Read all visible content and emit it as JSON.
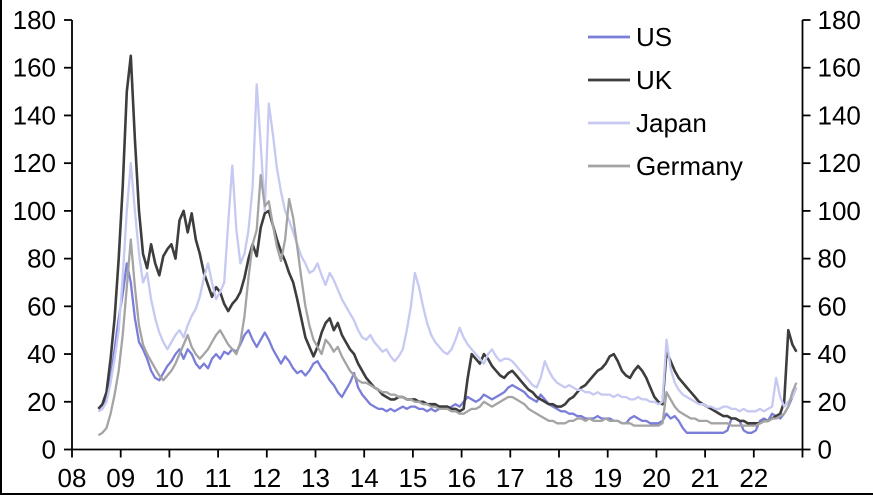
{
  "chart_data": {
    "type": "line",
    "title": "",
    "xlabel": "",
    "ylabel": "",
    "grid": false,
    "x_start": 2008.5417,
    "x_step": 0.0833333,
    "x_axis": {
      "tick_years": [
        2008,
        2009,
        2010,
        2011,
        2012,
        2013,
        2014,
        2015,
        2016,
        2017,
        2018,
        2019,
        2020,
        2021,
        2022,
        2023
      ],
      "tick_labels": [
        "08",
        "09",
        "10",
        "11",
        "12",
        "13",
        "14",
        "15",
        "16",
        "17",
        "18",
        "19",
        "20",
        "21",
        "22",
        ""
      ]
    },
    "y_axis": {
      "min": 0,
      "max": 180,
      "step": 20,
      "tick_labels": [
        "0",
        "20",
        "40",
        "60",
        "80",
        "100",
        "120",
        "140",
        "160",
        "180"
      ],
      "mirrored_right": true
    },
    "legend": {
      "position": "top-right",
      "entries": [
        "US",
        "UK",
        "Japan",
        "Germany"
      ]
    },
    "series": [
      {
        "name": "US",
        "color": "#7a7ed9",
        "width": 2.3,
        "values": [
          16,
          17,
          21,
          30,
          42,
          55,
          65,
          78,
          70,
          55,
          45,
          42,
          38,
          33,
          30,
          29,
          32,
          35,
          37,
          40,
          42,
          38,
          42,
          40,
          36,
          34,
          36,
          34,
          38,
          40,
          38,
          41,
          40,
          42,
          41,
          44,
          48,
          50,
          46,
          43,
          46,
          49,
          46,
          42,
          39,
          36,
          39,
          37,
          34,
          32,
          33,
          31,
          33,
          36,
          37,
          34,
          32,
          29,
          27,
          24,
          22,
          25,
          28,
          32,
          26,
          23,
          21,
          19,
          18,
          17,
          17,
          16,
          17,
          16,
          17,
          18,
          17,
          18,
          18,
          17,
          17,
          16,
          17,
          16,
          17,
          18,
          17,
          18,
          19,
          18,
          20,
          22,
          21,
          20,
          21,
          23,
          22,
          21,
          22,
          23,
          24,
          26,
          27,
          26,
          25,
          24,
          22,
          21,
          20,
          23,
          21,
          19,
          18,
          17,
          16,
          16,
          15,
          15,
          14,
          14,
          13,
          13,
          13,
          14,
          13,
          13,
          13,
          12,
          12,
          11,
          11,
          13,
          14,
          13,
          12,
          12,
          11,
          11,
          11,
          12,
          15,
          13,
          14,
          12,
          9,
          7,
          7,
          7,
          7,
          7,
          7,
          7,
          7,
          7,
          7,
          8,
          13,
          13,
          12,
          8,
          7,
          7,
          8,
          12,
          13,
          12,
          15,
          14,
          13,
          15,
          18,
          22,
          26
        ]
      },
      {
        "name": "UK",
        "color": "#3d3d3d",
        "width": 2.6,
        "values": [
          17,
          19,
          24,
          38,
          55,
          80,
          110,
          150,
          165,
          130,
          100,
          82,
          76,
          86,
          78,
          73,
          81,
          84,
          86,
          80,
          96,
          100,
          91,
          99,
          88,
          82,
          74,
          69,
          64,
          68,
          66,
          61,
          58,
          61,
          63,
          66,
          72,
          80,
          86,
          81,
          93,
          99,
          100,
          94,
          88,
          83,
          79,
          74,
          70,
          63,
          55,
          47,
          43,
          39,
          43,
          49,
          53,
          55,
          50,
          53,
          48,
          45,
          42,
          40,
          36,
          33,
          30,
          28,
          26,
          25,
          23,
          22,
          21,
          21,
          22,
          22,
          21,
          21,
          21,
          20,
          20,
          19,
          19,
          19,
          18,
          18,
          18,
          17,
          17,
          16,
          17,
          30,
          40,
          38,
          36,
          40,
          38,
          35,
          33,
          31,
          30,
          32,
          33,
          31,
          29,
          27,
          25,
          24,
          22,
          21,
          20,
          19,
          19,
          18,
          18,
          19,
          21,
          22,
          24,
          26,
          27,
          29,
          31,
          33,
          34,
          36,
          39,
          40,
          37,
          33,
          31,
          30,
          33,
          35,
          33,
          30,
          26,
          22,
          20,
          19,
          41,
          37,
          33,
          30,
          28,
          26,
          24,
          22,
          20,
          19,
          18,
          17,
          16,
          15,
          14,
          14,
          13,
          13,
          12,
          12,
          11,
          11,
          11,
          11,
          12,
          12,
          13,
          14,
          15,
          20,
          50,
          44,
          41
        ]
      },
      {
        "name": "Japan",
        "color": "#c6c9f1",
        "width": 2.3,
        "values": [
          16,
          17,
          20,
          28,
          38,
          50,
          72,
          100,
          120,
          100,
          82,
          70,
          74,
          63,
          55,
          49,
          45,
          42,
          45,
          48,
          50,
          47,
          52,
          56,
          59,
          64,
          72,
          78,
          70,
          63,
          66,
          70,
          95,
          119,
          92,
          78,
          82,
          92,
          110,
          153,
          128,
          100,
          145,
          132,
          118,
          108,
          100,
          96,
          91,
          86,
          81,
          78,
          74,
          75,
          78,
          73,
          69,
          74,
          71,
          67,
          63,
          60,
          57,
          54,
          50,
          47,
          46,
          48,
          45,
          43,
          41,
          42,
          39,
          37,
          39,
          42,
          50,
          60,
          74,
          68,
          60,
          53,
          48,
          45,
          43,
          41,
          40,
          42,
          46,
          51,
          47,
          44,
          42,
          40,
          38,
          36,
          40,
          42,
          39,
          37,
          38,
          38,
          37,
          35,
          33,
          31,
          29,
          27,
          26,
          30,
          37,
          33,
          30,
          28,
          27,
          26,
          27,
          26,
          25,
          25,
          24,
          24,
          23,
          24,
          23,
          23,
          23,
          22,
          23,
          22,
          22,
          21,
          21,
          22,
          21,
          21,
          20,
          20,
          19,
          20,
          46,
          34,
          28,
          25,
          23,
          22,
          21,
          20,
          19,
          19,
          18,
          18,
          17,
          17,
          18,
          18,
          17,
          17,
          16,
          17,
          16,
          16,
          16,
          17,
          16,
          17,
          18,
          30,
          22,
          18,
          20,
          22,
          26
        ]
      },
      {
        "name": "Germany",
        "color": "#a4a4a4",
        "width": 2.3,
        "values": [
          6,
          7,
          9,
          15,
          23,
          33,
          48,
          68,
          88,
          68,
          52,
          44,
          40,
          37,
          34,
          31,
          29,
          31,
          33,
          36,
          40,
          44,
          48,
          43,
          40,
          38,
          40,
          42,
          45,
          48,
          50,
          47,
          44,
          42,
          40,
          45,
          56,
          72,
          86,
          92,
          115,
          102,
          104,
          94,
          85,
          79,
          88,
          105,
          97,
          85,
          72,
          60,
          52,
          46,
          43,
          40,
          46,
          44,
          41,
          43,
          39,
          36,
          33,
          31,
          29,
          28,
          28,
          27,
          26,
          25,
          24,
          24,
          23,
          23,
          22,
          22,
          21,
          21,
          20,
          20,
          19,
          19,
          18,
          18,
          17,
          17,
          17,
          16,
          16,
          15,
          15,
          16,
          17,
          17,
          18,
          20,
          19,
          18,
          19,
          20,
          21,
          22,
          22,
          21,
          20,
          19,
          17,
          16,
          15,
          14,
          13,
          12,
          12,
          11,
          11,
          11,
          12,
          12,
          13,
          13,
          12,
          13,
          12,
          12,
          12,
          13,
          12,
          12,
          12,
          11,
          11,
          11,
          10,
          10,
          10,
          10,
          10,
          10,
          10,
          11,
          24,
          21,
          18,
          16,
          15,
          14,
          13,
          13,
          12,
          12,
          12,
          11,
          11,
          11,
          11,
          11,
          10,
          10,
          10,
          10,
          10,
          10,
          10,
          11,
          12,
          12,
          13,
          13,
          14,
          15,
          18,
          24,
          28
        ]
      }
    ]
  }
}
